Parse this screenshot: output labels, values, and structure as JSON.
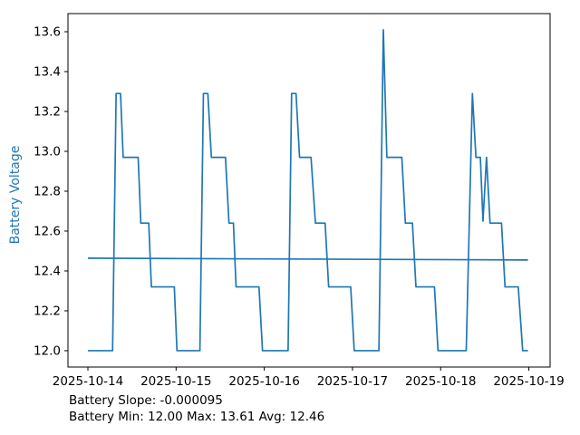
{
  "chart_data": {
    "type": "line",
    "title": "",
    "xlabel": "",
    "ylabel": "Battery Voltage",
    "grid": false,
    "legend": "none",
    "xlim": [
      -0.226,
      5.241
    ],
    "ylim": [
      11.918,
      13.691
    ],
    "x_tick_positions": [
      0,
      1,
      2,
      3,
      4,
      5
    ],
    "x_tick_labels": [
      "2025-10-14",
      "2025-10-15",
      "2025-10-16",
      "2025-10-17",
      "2025-10-18",
      "2025-10-19"
    ],
    "y_tick_values": [
      12.0,
      12.2,
      12.4,
      12.6,
      12.8,
      13.0,
      13.2,
      13.4,
      13.6
    ],
    "x_unit": "days_since_2025-10-14",
    "series": [
      {
        "name": "battery-voltage",
        "color": "#1f77b4",
        "points": [
          [
            0.0,
            12.0
          ],
          [
            0.28,
            12.0
          ],
          [
            0.32,
            13.29
          ],
          [
            0.37,
            13.29
          ],
          [
            0.4,
            12.97
          ],
          [
            0.57,
            12.97
          ],
          [
            0.6,
            12.64
          ],
          [
            0.69,
            12.64
          ],
          [
            0.72,
            12.32
          ],
          [
            0.98,
            12.32
          ],
          [
            1.01,
            12.0
          ],
          [
            1.27,
            12.0
          ],
          [
            1.31,
            13.29
          ],
          [
            1.36,
            13.29
          ],
          [
            1.4,
            12.97
          ],
          [
            1.56,
            12.97
          ],
          [
            1.6,
            12.64
          ],
          [
            1.65,
            12.64
          ],
          [
            1.68,
            12.32
          ],
          [
            1.94,
            12.32
          ],
          [
            1.98,
            12.0
          ],
          [
            2.27,
            12.0
          ],
          [
            2.31,
            13.29
          ],
          [
            2.36,
            13.29
          ],
          [
            2.4,
            12.97
          ],
          [
            2.53,
            12.97
          ],
          [
            2.58,
            12.64
          ],
          [
            2.69,
            12.64
          ],
          [
            2.73,
            12.32
          ],
          [
            2.98,
            12.32
          ],
          [
            3.02,
            12.0
          ],
          [
            3.3,
            12.0
          ],
          [
            3.35,
            13.61
          ],
          [
            3.39,
            12.97
          ],
          [
            3.56,
            12.97
          ],
          [
            3.6,
            12.64
          ],
          [
            3.68,
            12.64
          ],
          [
            3.72,
            12.32
          ],
          [
            3.93,
            12.32
          ],
          [
            3.97,
            12.0
          ],
          [
            4.29,
            12.0
          ],
          [
            4.36,
            13.29
          ],
          [
            4.4,
            12.97
          ],
          [
            4.45,
            12.97
          ],
          [
            4.48,
            12.65
          ],
          [
            4.52,
            12.97
          ],
          [
            4.56,
            12.64
          ],
          [
            4.69,
            12.64
          ],
          [
            4.73,
            12.32
          ],
          [
            4.88,
            12.32
          ],
          [
            4.93,
            12.0
          ],
          [
            4.99,
            12.0
          ]
        ]
      },
      {
        "name": "battery-trend",
        "color": "#1f77b4",
        "points": [
          [
            0.0,
            12.464
          ],
          [
            4.99,
            12.455
          ]
        ]
      }
    ],
    "annotations": {
      "slope_line": "Battery Slope: -0.000095",
      "stats_line": "Battery Min: 12.00 Max: 13.61 Avg: 12.46"
    },
    "stats": {
      "slope": -9.5e-05,
      "min": 12.0,
      "max": 13.61,
      "avg": 12.46
    },
    "colors": {
      "line": "#1f77b4",
      "ylabel": "#1f77b4",
      "axis": "#000000",
      "tick_text": "#000000",
      "footer_text": "#000000",
      "background": "#ffffff"
    }
  }
}
